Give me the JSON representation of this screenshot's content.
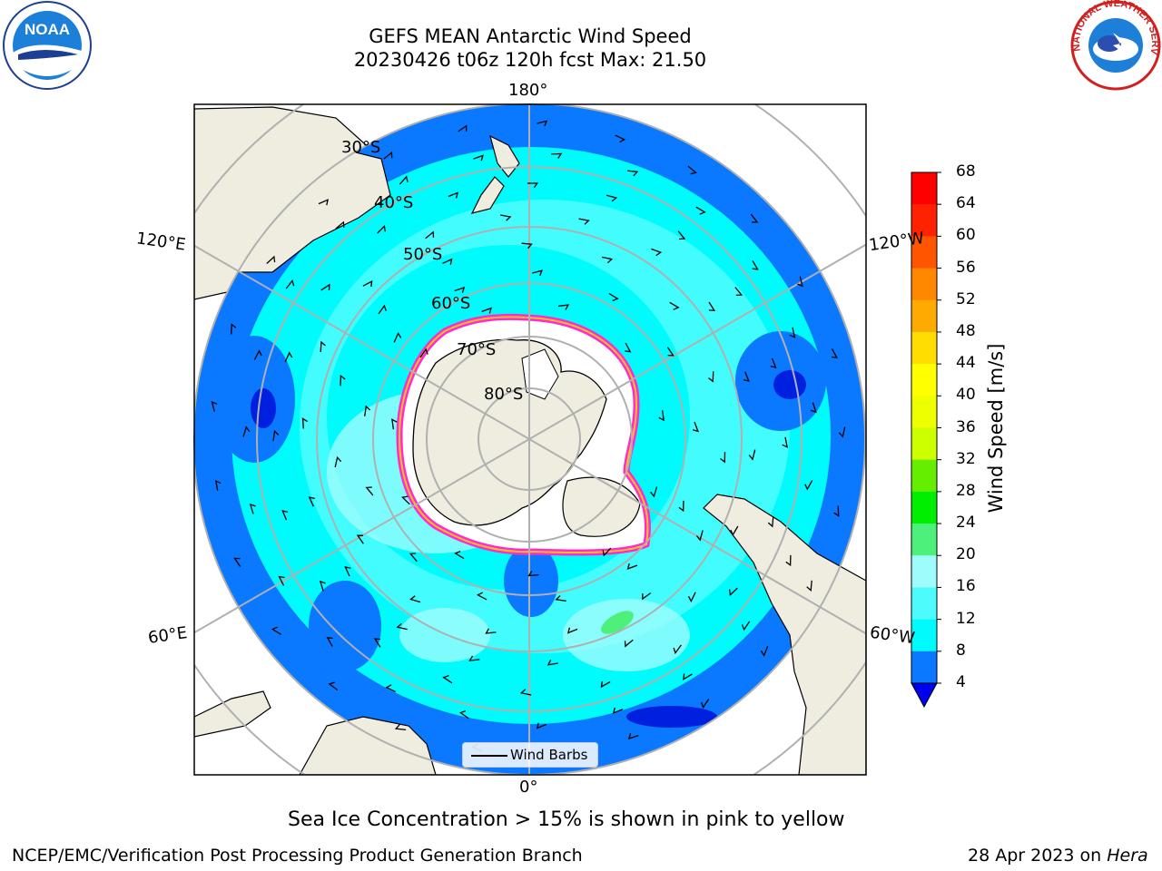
{
  "title": {
    "line1": "GEFS MEAN Antarctic Wind Speed",
    "line2": "20230426 t06z 120h fcst   Max: 21.50"
  },
  "map": {
    "projection": "south-polar-stereographic",
    "latitude_labels": [
      "30°S",
      "40°S",
      "50°S",
      "60°S",
      "70°S",
      "80°S"
    ],
    "longitude_labels": {
      "top": "180°",
      "bottom": "0°",
      "upper_left": "120°E",
      "lower_left": "60°E",
      "upper_right": "120°W",
      "lower_right": "60°W"
    },
    "colors": {
      "ocean_4_8": "#0a78ff",
      "ocean_8_12": "#00fbfd",
      "ocean_12_16": "#4dfbfd",
      "ocean_16_20": "#9efcfd",
      "ocean_20_24": "#4df07a",
      "below_4": "#0020e0",
      "land": "#efede0",
      "sea_ice_edge_pink": "#ff2ad0",
      "sea_ice_edge_yellow": "#ffc21e",
      "grid": "#b0b0b0"
    }
  },
  "legend": {
    "label": "Wind Barbs"
  },
  "colorbar": {
    "label": "Wind Speed [m/s]",
    "ticks": [
      "68",
      "64",
      "60",
      "56",
      "52",
      "48",
      "44",
      "40",
      "36",
      "32",
      "28",
      "24",
      "20",
      "16",
      "12",
      "8",
      "4"
    ],
    "colors": [
      "#ff0000",
      "#ff2200",
      "#ff5500",
      "#ff8800",
      "#ffaa00",
      "#ffdd00",
      "#ffff00",
      "#eeff00",
      "#ccff00",
      "#66ee00",
      "#00ee00",
      "#4df07a",
      "#9efcfd",
      "#4dfbfd",
      "#00fbfd",
      "#0a78ff"
    ],
    "under_color": "#0000ee"
  },
  "note": "Sea Ice Concentration > 15% is shown in pink to yellow",
  "footer": {
    "left": "NCEP/EMC/Verification Post Processing Product Generation Branch",
    "date": "28 Apr 2023 on ",
    "machine": "Hera"
  },
  "logos": {
    "noaa": "NOAA",
    "nws": "NATIONAL WEATHER SERVICE"
  }
}
